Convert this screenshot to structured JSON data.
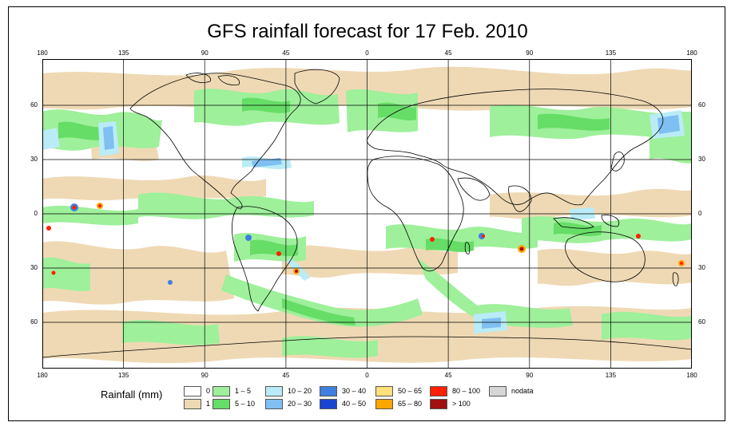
{
  "title": "GFS rainfall forecast for 17 Feb. 2010",
  "axes": {
    "top_ticks": [
      "180",
      "135",
      "90",
      "45",
      "0",
      "45",
      "90",
      "135",
      "180"
    ],
    "bottom_ticks": [
      "180",
      "135",
      "90",
      "45",
      "0",
      "45",
      "90",
      "135",
      "180"
    ],
    "left_ticks": [
      "60",
      "30",
      "0",
      "30",
      "60"
    ],
    "right_ticks": [
      "60",
      "30",
      "0",
      "30",
      "60"
    ]
  },
  "legend": {
    "title": "Rainfall (mm)",
    "items": [
      {
        "label": "0",
        "color": "#ffffff"
      },
      {
        "label": "1",
        "color": "#efd9b4"
      },
      {
        "label": "1 – 5",
        "color": "#9ef09a"
      },
      {
        "label": "5 – 10",
        "color": "#66dd66"
      },
      {
        "label": "10 – 20",
        "color": "#b9ecf7"
      },
      {
        "label": "20 – 30",
        "color": "#7fbff2"
      },
      {
        "label": "30 – 40",
        "color": "#3f7fe0"
      },
      {
        "label": "40 – 50",
        "color": "#1b45d0"
      },
      {
        "label": "50 – 65",
        "color": "#ffe07a"
      },
      {
        "label": "65 – 80",
        "color": "#ffa500"
      },
      {
        "label": "80 – 100",
        "color": "#ff2000"
      },
      {
        "label": "> 100",
        "color": "#a01010"
      },
      {
        "label": "nodata",
        "color": "#d6d6d6"
      }
    ]
  }
}
